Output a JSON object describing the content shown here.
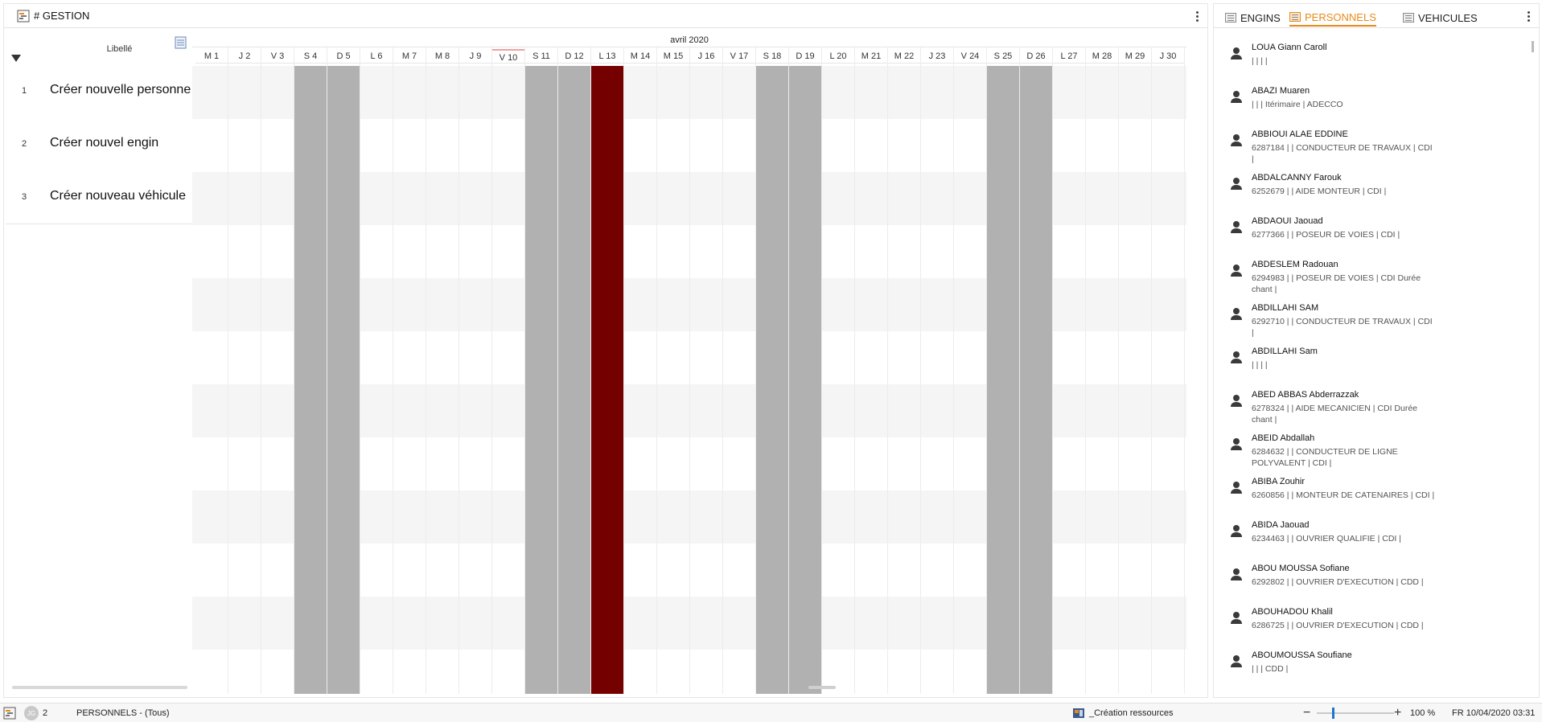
{
  "left_panel": {
    "title": "# GESTION",
    "column_header": "Libellé",
    "rows": [
      {
        "num": "1",
        "label": "Créer nouvelle personne"
      },
      {
        "num": "2",
        "label": "Créer nouvel engin"
      },
      {
        "num": "3",
        "label": "Créer nouveau véhicule"
      }
    ]
  },
  "calendar": {
    "month": "avril 2020",
    "days": [
      "M 1",
      "J 2",
      "V 3",
      "S 4",
      "D 5",
      "L 6",
      "M 7",
      "M 8",
      "J 9",
      "V 10",
      "S 11",
      "D 12",
      "L 13",
      "M 14",
      "M 15",
      "J 16",
      "V 17",
      "S 18",
      "D 19",
      "L 20",
      "M 21",
      "M 22",
      "J 23",
      "V 24",
      "S 25",
      "D 26",
      "L 27",
      "M 28",
      "M 29",
      "J 30"
    ],
    "weekend_days": [
      "S 4",
      "D 5",
      "S 11",
      "D 12",
      "S 18",
      "D 19",
      "S 25",
      "D 26"
    ],
    "holiday_day": "L 13",
    "current_day": "V 10",
    "colors": {
      "weekend": "#b1b1b1",
      "holiday": "#750000",
      "current_marker": "#f0a0a0"
    }
  },
  "right_panel": {
    "tabs": [
      {
        "label": "ENGINS",
        "active": false
      },
      {
        "label": "PERSONNELS",
        "active": true
      },
      {
        "label": "VEHICULES",
        "active": false
      }
    ],
    "accent_color": "#e98a18",
    "resources": [
      {
        "name": "LOUA Giann Caroll",
        "info": "|  |  |  |"
      },
      {
        "name": "ABAZI Muaren",
        "info": "|  |  | Itérimaire | ADECCO"
      },
      {
        "name": "ABBIOUI ALAE EDDINE",
        "info": "6287184 |  | CONDUCTEUR DE TRAVAUX | CDI |"
      },
      {
        "name": "ABDALCANNY Farouk",
        "info": "6252679 |  | AIDE MONTEUR | CDI |"
      },
      {
        "name": "ABDAOUI Jaouad",
        "info": "6277366 |  | POSEUR DE VOIES | CDI |"
      },
      {
        "name": "ABDESLEM Radouan",
        "info": "6294983 |  | POSEUR DE VOIES | CDI Durée chant |"
      },
      {
        "name": "ABDILLAHI SAM",
        "info": "6292710 |  | CONDUCTEUR DE TRAVAUX | CDI |"
      },
      {
        "name": "ABDILLAHI Sam",
        "info": "|  |  |  |"
      },
      {
        "name": "ABED ABBAS Abderrazzak",
        "info": "6278324 |  | AIDE MECANICIEN | CDI Durée chant |"
      },
      {
        "name": "ABEID Abdallah",
        "info": "6284632 |  | CONDUCTEUR DE LIGNE POLYVALENT | CDI |"
      },
      {
        "name": "ABIBA Zouhir",
        "info": "6260856 |  | MONTEUR DE CATENAIRES | CDI |"
      },
      {
        "name": "ABIDA Jaouad",
        "info": "6234463 |  | OUVRIER QUALIFIE | CDI |"
      },
      {
        "name": "ABOU MOUSSA Sofiane",
        "info": "6292802 |  | OUVRIER D'EXECUTION | CDD |"
      },
      {
        "name": "ABOUHADOU Khalil",
        "info": "6286725 |  | OUVRIER D'EXECUTION | CDD |"
      },
      {
        "name": "ABOUMOUSSA Soufiane",
        "info": "|  |  | CDD |"
      }
    ]
  },
  "status_bar": {
    "badge": "JG",
    "count": "2",
    "filter": "PERSONNELS - (Tous)",
    "action": "_Création ressources",
    "zoom_value": "100 %",
    "datetime": "FR 10/04/2020 03:31"
  }
}
